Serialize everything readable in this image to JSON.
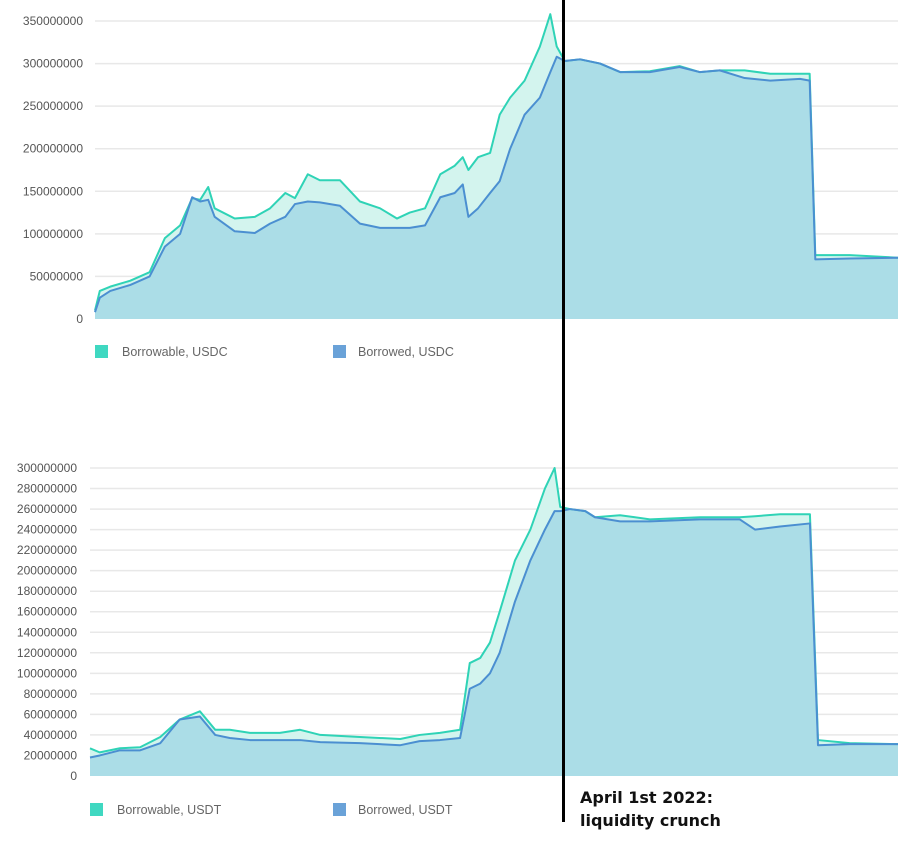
{
  "colors": {
    "borrowable": "#2fd3b6",
    "borrowed": "#4b8fd1",
    "borrowable_swatch": "#3fd8c1",
    "borrowed_swatch": "#6aa2d8",
    "fill_borrowed": "#abdde7",
    "fill_gap": "#d3f4ee",
    "grid": "#e8e8e8"
  },
  "annotation": {
    "line1": "April 1st 2022:",
    "line2": "liquidity crunch"
  },
  "chart_data": [
    {
      "type": "area",
      "title": "",
      "xlabel": "",
      "ylabel": "",
      "ylim": [
        0,
        350000000
      ],
      "yticks": [
        "0",
        "50000000",
        "100000000",
        "150000000",
        "200000000",
        "250000000",
        "300000000",
        "350000000"
      ],
      "grid": true,
      "legend": "bottom-left",
      "x": [
        0,
        0.6,
        1.9,
        4.4,
        6.8,
        8.7,
        10.6,
        12.1,
        13.1,
        14.1,
        14.9,
        17.4,
        19.9,
        21.8,
        23.7,
        24.9,
        26.5,
        28,
        30.5,
        33,
        35.5,
        37.6,
        39.2,
        41.1,
        43,
        44.8,
        45.8,
        46.5,
        47.7,
        49.2,
        50.4,
        51.7,
        53.5,
        55.4,
        56.7,
        57.5,
        58.5,
        60.4,
        62.9,
        65.4,
        69.1,
        72.8,
        75.3,
        77.8,
        80.9,
        84.1,
        87.8,
        89,
        89.7,
        94,
        100
      ],
      "series": [
        {
          "name": "Borrowable, USDC",
          "values_millions": [
            10,
            33,
            38,
            45,
            55,
            95,
            110,
            142,
            140,
            155,
            130,
            118,
            120,
            130,
            148,
            142,
            170,
            163,
            163,
            138,
            130,
            118,
            125,
            130,
            170,
            180,
            190,
            175,
            190,
            195,
            240,
            260,
            280,
            320,
            358,
            320,
            303,
            305,
            300,
            290,
            291,
            297,
            290,
            292,
            292,
            288,
            288,
            288,
            75,
            75,
            72
          ]
        },
        {
          "name": "Borrowed, USDC",
          "values_millions": [
            8,
            25,
            33,
            40,
            50,
            85,
            100,
            143,
            138,
            140,
            120,
            103,
            101,
            112,
            120,
            135,
            138,
            137,
            133,
            112,
            107,
            107,
            107,
            110,
            143,
            148,
            158,
            120,
            130,
            148,
            162,
            200,
            240,
            260,
            290,
            308,
            303,
            305,
            300,
            290,
            290,
            296,
            290,
            292,
            283,
            280,
            282,
            280,
            70,
            71,
            72
          ]
        }
      ]
    },
    {
      "type": "area",
      "title": "",
      "xlabel": "",
      "ylabel": "",
      "ylim": [
        0,
        300000000
      ],
      "yticks": [
        "0",
        "20000000",
        "40000000",
        "60000000",
        "80000000",
        "100000000",
        "120000000",
        "140000000",
        "160000000",
        "180000000",
        "200000000",
        "220000000",
        "240000000",
        "260000000",
        "280000000",
        "300000000"
      ],
      "grid": true,
      "legend": "bottom-left",
      "x": [
        0,
        1.2,
        3.7,
        6.2,
        8.7,
        11.1,
        13.6,
        15.5,
        17.3,
        19.8,
        23.5,
        26,
        28.5,
        33.4,
        38.4,
        40.8,
        43.3,
        45.8,
        47,
        48.3,
        49.5,
        50.7,
        52.6,
        54.5,
        56.3,
        57.5,
        58.2,
        59.4,
        61.3,
        62.5,
        65.6,
        69.3,
        75.5,
        80.4,
        82.3,
        85.4,
        89.1,
        90.1,
        94,
        100
      ],
      "series": [
        {
          "name": "Borrowable, USDT",
          "values_millions": [
            27,
            23,
            27,
            28,
            38,
            55,
            63,
            45,
            45,
            42,
            42,
            45,
            40,
            38,
            36,
            40,
            42,
            45,
            110,
            115,
            130,
            160,
            210,
            240,
            280,
            300,
            262,
            260,
            258,
            252,
            254,
            250,
            252,
            252,
            253,
            255,
            255,
            35,
            32,
            31
          ]
        },
        {
          "name": "Borrowed, USDT",
          "values_millions": [
            18,
            20,
            25,
            25,
            32,
            55,
            58,
            40,
            37,
            35,
            35,
            35,
            33,
            32,
            30,
            34,
            35,
            37,
            85,
            90,
            100,
            120,
            170,
            210,
            240,
            258,
            258,
            260,
            258,
            252,
            248,
            248,
            250,
            250,
            240,
            243,
            246,
            30,
            31,
            31
          ]
        }
      ]
    }
  ]
}
